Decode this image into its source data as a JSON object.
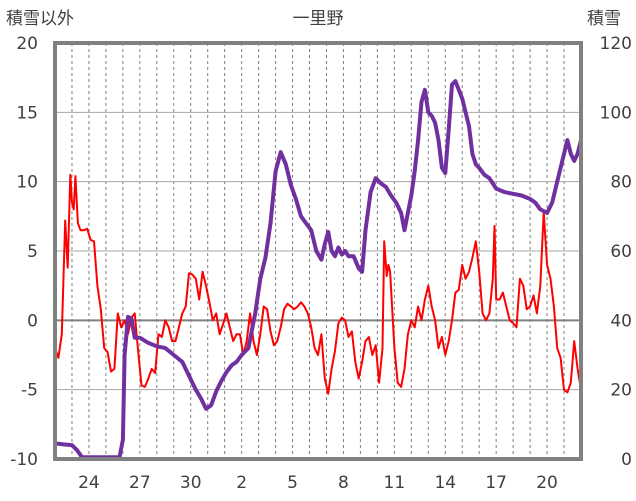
{
  "chart_data": {
    "type": "line",
    "title": "一里野",
    "y_left_label": "積雪以外",
    "y_right_label": "積雪",
    "y_left_range": [
      -10,
      20
    ],
    "y_right_range": [
      0,
      120
    ],
    "y_left_ticks": [
      "20",
      "15",
      "10",
      "5",
      "0",
      "-5",
      "-10"
    ],
    "y_right_ticks": [
      "120",
      "100",
      "80",
      "60",
      "40",
      "20",
      "0"
    ],
    "x_range": [
      22,
      53
    ],
    "x_ticks": [
      {
        "pos": 24,
        "label": "24"
      },
      {
        "pos": 27,
        "label": "27"
      },
      {
        "pos": 30,
        "label": "30"
      },
      {
        "pos": 33,
        "label": "2"
      },
      {
        "pos": 36,
        "label": "5"
      },
      {
        "pos": 39,
        "label": "8"
      },
      {
        "pos": 42,
        "label": "11"
      },
      {
        "pos": 45,
        "label": "14"
      },
      {
        "pos": 48,
        "label": "17"
      },
      {
        "pos": 51,
        "label": "20"
      }
    ],
    "grid": "horizontal every 5 on left axis, dashed vertical daily",
    "series": [
      {
        "axis": "left",
        "color": "#ff0000",
        "points": [
          [
            22.0,
            -2.0
          ],
          [
            22.2,
            -2.7
          ],
          [
            22.4,
            -1.0
          ],
          [
            22.6,
            7.2
          ],
          [
            22.75,
            3.8
          ],
          [
            22.9,
            10.5
          ],
          [
            23.0,
            8.5
          ],
          [
            23.1,
            8.0
          ],
          [
            23.2,
            10.4
          ],
          [
            23.35,
            7.0
          ],
          [
            23.5,
            6.5
          ],
          [
            23.7,
            6.5
          ],
          [
            23.9,
            6.6
          ],
          [
            24.1,
            5.8
          ],
          [
            24.3,
            5.7
          ],
          [
            24.5,
            2.5
          ],
          [
            24.7,
            0.8
          ],
          [
            24.9,
            -2.0
          ],
          [
            25.1,
            -2.3
          ],
          [
            25.3,
            -3.7
          ],
          [
            25.5,
            -3.5
          ],
          [
            25.7,
            0.5
          ],
          [
            25.9,
            -0.5
          ],
          [
            26.1,
            0.0
          ],
          [
            26.3,
            -1.0
          ],
          [
            26.5,
            0.2
          ],
          [
            26.7,
            0.5
          ],
          [
            26.9,
            -2.2
          ],
          [
            27.1,
            -4.7
          ],
          [
            27.3,
            -4.8
          ],
          [
            27.5,
            -4.2
          ],
          [
            27.7,
            -3.5
          ],
          [
            27.9,
            -3.8
          ],
          [
            28.1,
            -1.0
          ],
          [
            28.3,
            -1.2
          ],
          [
            28.5,
            0.0
          ],
          [
            28.7,
            -0.5
          ],
          [
            28.9,
            -1.5
          ],
          [
            29.1,
            -1.5
          ],
          [
            29.3,
            -0.5
          ],
          [
            29.5,
            0.5
          ],
          [
            29.7,
            1.0
          ],
          [
            29.9,
            3.4
          ],
          [
            30.1,
            3.3
          ],
          [
            30.3,
            3.0
          ],
          [
            30.5,
            1.5
          ],
          [
            30.7,
            3.5
          ],
          [
            30.9,
            2.5
          ],
          [
            31.1,
            1.3
          ],
          [
            31.3,
            0.0
          ],
          [
            31.5,
            0.5
          ],
          [
            31.7,
            -1.0
          ],
          [
            31.9,
            -0.3
          ],
          [
            32.1,
            0.5
          ],
          [
            32.3,
            -0.5
          ],
          [
            32.5,
            -1.5
          ],
          [
            32.7,
            -1.0
          ],
          [
            32.9,
            -1.0
          ],
          [
            33.1,
            -2.5
          ],
          [
            33.3,
            -1.5
          ],
          [
            33.5,
            0.5
          ],
          [
            33.7,
            -1.5
          ],
          [
            33.9,
            -2.5
          ],
          [
            34.1,
            -1.0
          ],
          [
            34.3,
            1.0
          ],
          [
            34.5,
            0.8
          ],
          [
            34.7,
            -0.8
          ],
          [
            34.9,
            -1.8
          ],
          [
            35.1,
            -1.5
          ],
          [
            35.3,
            -0.5
          ],
          [
            35.5,
            0.8
          ],
          [
            35.7,
            1.2
          ],
          [
            35.9,
            1.0
          ],
          [
            36.1,
            0.8
          ],
          [
            36.3,
            1.0
          ],
          [
            36.5,
            1.3
          ],
          [
            36.7,
            1.0
          ],
          [
            36.9,
            0.5
          ],
          [
            37.1,
            -0.5
          ],
          [
            37.3,
            -2.0
          ],
          [
            37.5,
            -2.5
          ],
          [
            37.7,
            -1.0
          ],
          [
            37.9,
            -4.2
          ],
          [
            38.1,
            -5.3
          ],
          [
            38.3,
            -3.5
          ],
          [
            38.5,
            -2.2
          ],
          [
            38.7,
            -0.2
          ],
          [
            38.9,
            0.2
          ],
          [
            39.1,
            0.0
          ],
          [
            39.3,
            -1.2
          ],
          [
            39.5,
            -0.8
          ],
          [
            39.7,
            -3.0
          ],
          [
            39.9,
            -4.2
          ],
          [
            40.1,
            -3.0
          ],
          [
            40.3,
            -1.5
          ],
          [
            40.5,
            -1.2
          ],
          [
            40.7,
            -2.5
          ],
          [
            40.9,
            -1.8
          ],
          [
            41.1,
            -4.5
          ],
          [
            41.3,
            -2.0
          ],
          [
            41.4,
            5.7
          ],
          [
            41.55,
            3.2
          ],
          [
            41.65,
            4.0
          ],
          [
            41.75,
            3.5
          ],
          [
            42.0,
            -2.0
          ],
          [
            42.2,
            -4.5
          ],
          [
            42.4,
            -4.8
          ],
          [
            42.6,
            -3.5
          ],
          [
            42.8,
            -1.0
          ],
          [
            43.0,
            0.0
          ],
          [
            43.2,
            -0.5
          ],
          [
            43.4,
            1.0
          ],
          [
            43.6,
            0.0
          ],
          [
            43.8,
            1.5
          ],
          [
            44.0,
            2.5
          ],
          [
            44.2,
            1.0
          ],
          [
            44.4,
            0.0
          ],
          [
            44.6,
            -2.0
          ],
          [
            44.8,
            -1.2
          ],
          [
            45.0,
            -2.5
          ],
          [
            45.2,
            -1.5
          ],
          [
            45.4,
            0.0
          ],
          [
            45.6,
            2.0
          ],
          [
            45.8,
            2.2
          ],
          [
            46.0,
            4.0
          ],
          [
            46.2,
            3.0
          ],
          [
            46.4,
            3.5
          ],
          [
            46.6,
            4.5
          ],
          [
            46.8,
            5.7
          ],
          [
            47.0,
            3.5
          ],
          [
            47.2,
            0.5
          ],
          [
            47.4,
            0.0
          ],
          [
            47.6,
            0.5
          ],
          [
            47.8,
            3.0
          ],
          [
            47.9,
            6.8
          ],
          [
            48.0,
            1.5
          ],
          [
            48.2,
            1.5
          ],
          [
            48.4,
            2.0
          ],
          [
            48.6,
            1.0
          ],
          [
            48.8,
            0.0
          ],
          [
            49.0,
            -0.2
          ],
          [
            49.2,
            -0.5
          ],
          [
            49.4,
            3.0
          ],
          [
            49.6,
            2.5
          ],
          [
            49.8,
            0.8
          ],
          [
            50.0,
            1.0
          ],
          [
            50.2,
            1.8
          ],
          [
            50.4,
            0.5
          ],
          [
            50.6,
            2.5
          ],
          [
            50.8,
            7.8
          ],
          [
            51.0,
            4.0
          ],
          [
            51.2,
            3.0
          ],
          [
            51.4,
            1.0
          ],
          [
            51.6,
            -2.0
          ],
          [
            51.8,
            -2.7
          ],
          [
            52.0,
            -5.0
          ],
          [
            52.2,
            -5.2
          ],
          [
            52.4,
            -4.5
          ],
          [
            52.6,
            -1.5
          ],
          [
            52.8,
            -3.5
          ],
          [
            53.0,
            -5.0
          ]
        ]
      },
      {
        "axis": "right",
        "color": "#7030a0",
        "points": [
          [
            22.0,
            4.5
          ],
          [
            22.5,
            4.2
          ],
          [
            23.0,
            4.0
          ],
          [
            23.3,
            2.5
          ],
          [
            23.6,
            0.5
          ],
          [
            24.0,
            0.5
          ],
          [
            24.5,
            0.5
          ],
          [
            25.0,
            0.5
          ],
          [
            25.5,
            0.5
          ],
          [
            25.8,
            0.5
          ],
          [
            26.0,
            5.5
          ],
          [
            26.1,
            30.0
          ],
          [
            26.3,
            41.0
          ],
          [
            26.5,
            40.5
          ],
          [
            26.7,
            35.0
          ],
          [
            27.0,
            35.0
          ],
          [
            27.5,
            33.5
          ],
          [
            28.0,
            32.5
          ],
          [
            28.5,
            32.0
          ],
          [
            29.0,
            30.0
          ],
          [
            29.5,
            28.0
          ],
          [
            30.0,
            23.0
          ],
          [
            30.3,
            20.0
          ],
          [
            30.6,
            17.5
          ],
          [
            30.9,
            14.5
          ],
          [
            31.2,
            15.5
          ],
          [
            31.5,
            19.5
          ],
          [
            31.8,
            22.5
          ],
          [
            32.1,
            25.0
          ],
          [
            32.4,
            27.0
          ],
          [
            32.7,
            28.0
          ],
          [
            33.0,
            30.0
          ],
          [
            33.4,
            32.0
          ],
          [
            33.8,
            42.0
          ],
          [
            34.1,
            52.0
          ],
          [
            34.4,
            58.0
          ],
          [
            34.7,
            68.0
          ],
          [
            35.0,
            83.0
          ],
          [
            35.3,
            88.5
          ],
          [
            35.6,
            85.0
          ],
          [
            35.9,
            79.0
          ],
          [
            36.2,
            75.0
          ],
          [
            36.5,
            70.0
          ],
          [
            36.8,
            68.0
          ],
          [
            37.1,
            66.0
          ],
          [
            37.4,
            60.0
          ],
          [
            37.7,
            57.5
          ],
          [
            37.9,
            62.0
          ],
          [
            38.1,
            65.5
          ],
          [
            38.3,
            60.0
          ],
          [
            38.5,
            58.5
          ],
          [
            38.7,
            61.0
          ],
          [
            38.9,
            59.0
          ],
          [
            39.1,
            60.0
          ],
          [
            39.3,
            58.5
          ],
          [
            39.6,
            58.5
          ],
          [
            39.9,
            55.0
          ],
          [
            40.1,
            54.0
          ],
          [
            40.3,
            66.0
          ],
          [
            40.6,
            77.0
          ],
          [
            40.9,
            81.0
          ],
          [
            41.2,
            79.5
          ],
          [
            41.5,
            78.5
          ],
          [
            41.8,
            76.0
          ],
          [
            42.1,
            74.0
          ],
          [
            42.4,
            71.0
          ],
          [
            42.6,
            66.0
          ],
          [
            43.0,
            76.0
          ],
          [
            43.2,
            83.0
          ],
          [
            43.4,
            92.0
          ],
          [
            43.6,
            103.0
          ],
          [
            43.8,
            106.5
          ],
          [
            44.0,
            100.0
          ],
          [
            44.2,
            99.0
          ],
          [
            44.4,
            97.0
          ],
          [
            44.6,
            92.0
          ],
          [
            44.8,
            84.0
          ],
          [
            45.0,
            82.5
          ],
          [
            45.2,
            95.0
          ],
          [
            45.4,
            108.0
          ],
          [
            45.6,
            109.0
          ],
          [
            45.8,
            106.5
          ],
          [
            46.0,
            104.0
          ],
          [
            46.2,
            100.0
          ],
          [
            46.4,
            96.0
          ],
          [
            46.6,
            88.0
          ],
          [
            46.8,
            85.0
          ],
          [
            47.0,
            84.0
          ],
          [
            47.3,
            82.0
          ],
          [
            47.6,
            81.0
          ],
          [
            48.0,
            78.0
          ],
          [
            48.5,
            77.0
          ],
          [
            49.0,
            76.5
          ],
          [
            49.5,
            76.0
          ],
          [
            50.0,
            75.0
          ],
          [
            50.3,
            74.0
          ],
          [
            50.6,
            72.0
          ],
          [
            51.0,
            71.0
          ],
          [
            51.3,
            74.0
          ],
          [
            51.6,
            80.0
          ],
          [
            51.9,
            86.0
          ],
          [
            52.2,
            92.0
          ],
          [
            52.4,
            88.0
          ],
          [
            52.6,
            86.0
          ],
          [
            52.8,
            88.0
          ],
          [
            53.0,
            92.0
          ]
        ]
      }
    ]
  }
}
